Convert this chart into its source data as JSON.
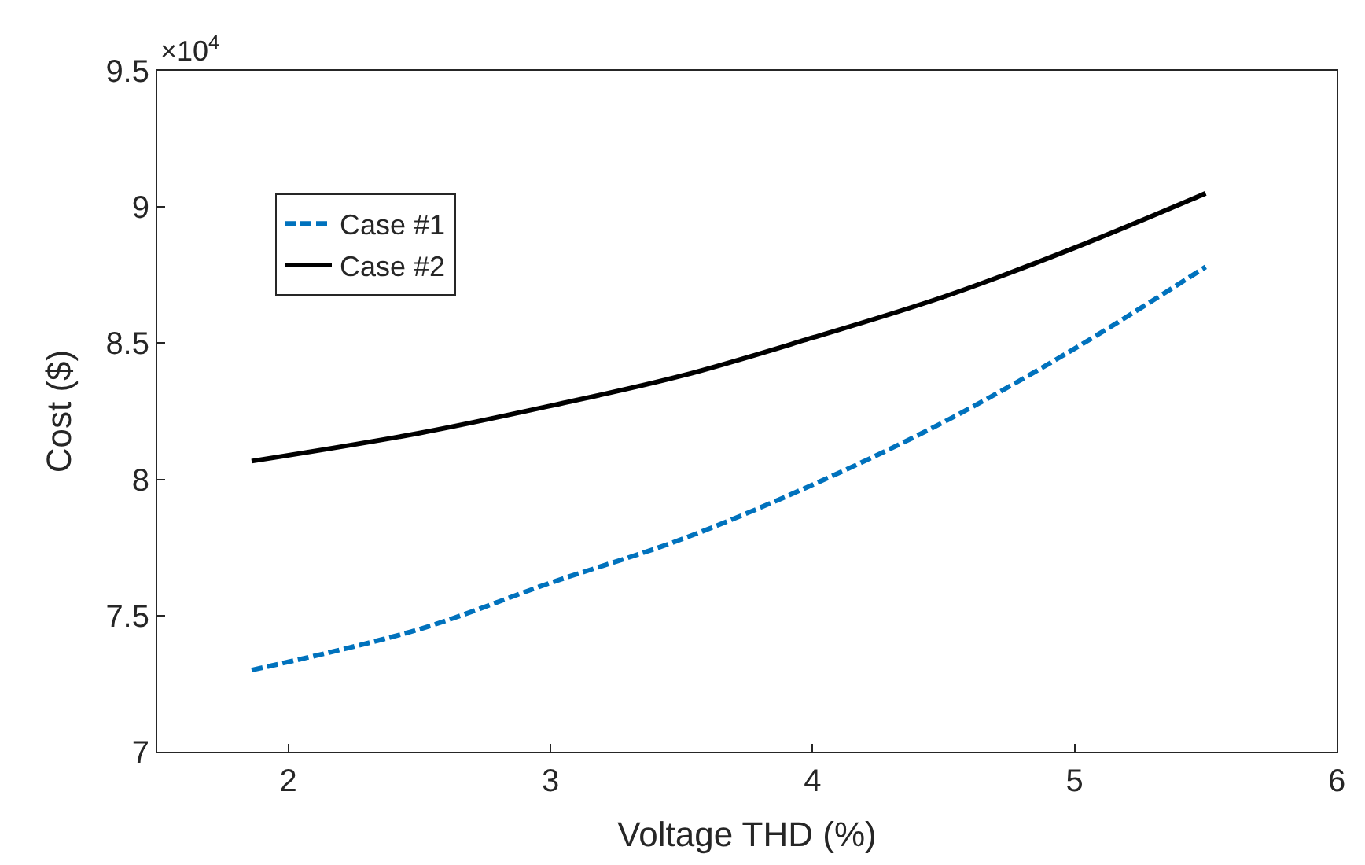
{
  "chart_data": {
    "type": "line",
    "xlabel": "Voltage THD (%)",
    "ylabel": "Cost ($)",
    "annotations": [
      "×10$^{4}$"
    ],
    "x": [
      1.86,
      2.5,
      3,
      3.5,
      4,
      4.5,
      5,
      5.5
    ],
    "series": [
      {
        "name": "Case #1",
        "color": "#0072bd",
        "line_style": "dashed",
        "values": [
          7.3,
          7.45,
          7.62,
          7.78,
          7.98,
          8.21,
          8.48,
          8.78
        ]
      },
      {
        "name": "Case #2",
        "color": "#000000",
        "line_style": "solid",
        "values": [
          8.067,
          8.17,
          8.27,
          8.38,
          8.52,
          8.67,
          8.85,
          9.05
        ]
      }
    ],
    "xlim": [
      1.5,
      6
    ],
    "xticks": [
      2,
      3,
      4,
      5,
      6
    ],
    "ylim": [
      7,
      9.5
    ],
    "yticks": [
      7,
      7.5,
      8,
      8.5,
      9,
      9.5
    ],
    "grid": false,
    "legend": "top left",
    "marker": "none"
  }
}
